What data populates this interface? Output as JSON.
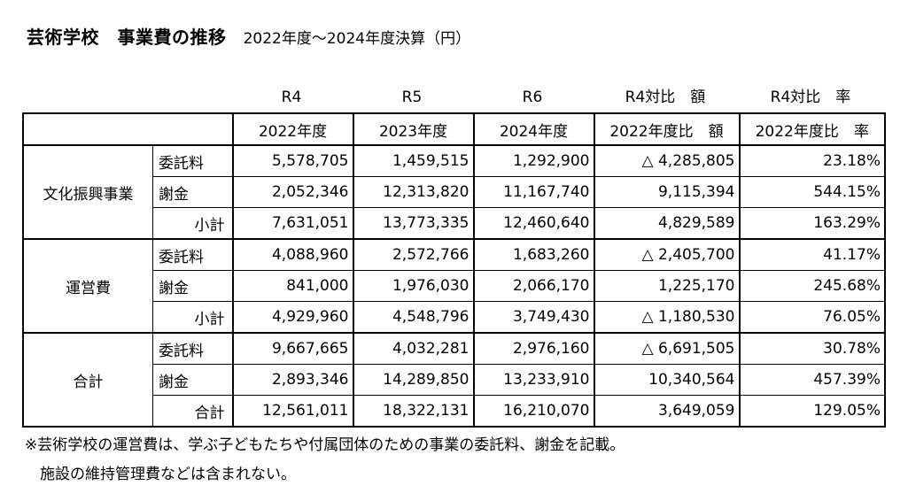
{
  "title": {
    "main": "芸術学校　事業費の推移",
    "sub": "2022年度～2024年度決算（円）"
  },
  "header_top": [
    "R4",
    "R5",
    "R6",
    "R4対比　額",
    "R4対比　率"
  ],
  "header_years": [
    "2022年度",
    "2023年度",
    "2024年度",
    "2022年度比　額",
    "2022年度比　率"
  ],
  "groups": [
    {
      "name": "文化振興事業",
      "rows": [
        {
          "label": "委託料",
          "r4": "5,578,705",
          "r5": "1,459,515",
          "r6": "1,292,900",
          "diff": "△ 4,285,805",
          "rate": "23.18%"
        },
        {
          "label": "謝金",
          "r4": "2,052,346",
          "r5": "12,313,820",
          "r6": "11,167,740",
          "diff": "9,115,394",
          "rate": "544.15%"
        },
        {
          "label": "小計",
          "r4": "7,631,051",
          "r5": "13,773,335",
          "r6": "12,460,640",
          "diff": "4,829,589",
          "rate": "163.29%"
        }
      ]
    },
    {
      "name": "運営費",
      "rows": [
        {
          "label": "委託料",
          "r4": "4,088,960",
          "r5": "2,572,766",
          "r6": "1,683,260",
          "diff": "△ 2,405,700",
          "rate": "41.17%"
        },
        {
          "label": "謝金",
          "r4": "841,000",
          "r5": "1,976,030",
          "r6": "2,066,170",
          "diff": "1,225,170",
          "rate": "245.68%"
        },
        {
          "label": "小計",
          "r4": "4,929,960",
          "r5": "4,548,796",
          "r6": "3,749,430",
          "diff": "△ 1,180,530",
          "rate": "76.05%"
        }
      ]
    },
    {
      "name": "合計",
      "rows": [
        {
          "label": "委託料",
          "r4": "9,667,665",
          "r5": "4,032,281",
          "r6": "2,976,160",
          "diff": "△ 6,691,505",
          "rate": "30.78%"
        },
        {
          "label": "謝金",
          "r4": "2,893,346",
          "r5": "14,289,850",
          "r6": "13,233,910",
          "diff": "10,340,564",
          "rate": "457.39%"
        },
        {
          "label": "合計",
          "r4": "12,561,011",
          "r5": "18,322,131",
          "r6": "16,210,070",
          "diff": "3,649,059",
          "rate": "129.05%"
        }
      ]
    }
  ],
  "notes": [
    "※芸術学校の運営費は、学ぶ子どもたちや付属団体のための事業の委託料、謝金を記載。",
    "　施設の維持管理費などは含まれない。"
  ]
}
